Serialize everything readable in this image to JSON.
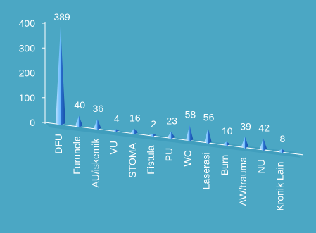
{
  "chart_data": {
    "type": "bar",
    "style": "3d-pyramid",
    "categories": [
      "DFU",
      "Furuncle",
      "AU/iskemik",
      "VU",
      "STOMA",
      "Fistula",
      "PU",
      "WC",
      "Laserasi",
      "Burn",
      "AW/trauma",
      "NU",
      "Kronik Lain"
    ],
    "values": [
      389,
      40,
      36,
      4,
      16,
      2,
      23,
      58,
      56,
      10,
      39,
      42,
      8
    ],
    "data_labels": [
      "389",
      "40",
      "36",
      "4",
      "16",
      "2",
      "23",
      "58",
      "56",
      "10",
      "39",
      "42",
      "8"
    ],
    "y_ticks": [
      "0",
      "100",
      "200",
      "300",
      "400"
    ],
    "ylim": [
      0,
      400
    ],
    "title": "",
    "xlabel": "",
    "ylabel": "",
    "grid": false,
    "legend": "none"
  },
  "colors": {
    "background": "#4ba7c4",
    "text": "#ffffff",
    "axis": "#ffffff",
    "bar_light": "#66b9ff",
    "bar_dark": "#1550a8",
    "floor": "#2f8eb3"
  }
}
